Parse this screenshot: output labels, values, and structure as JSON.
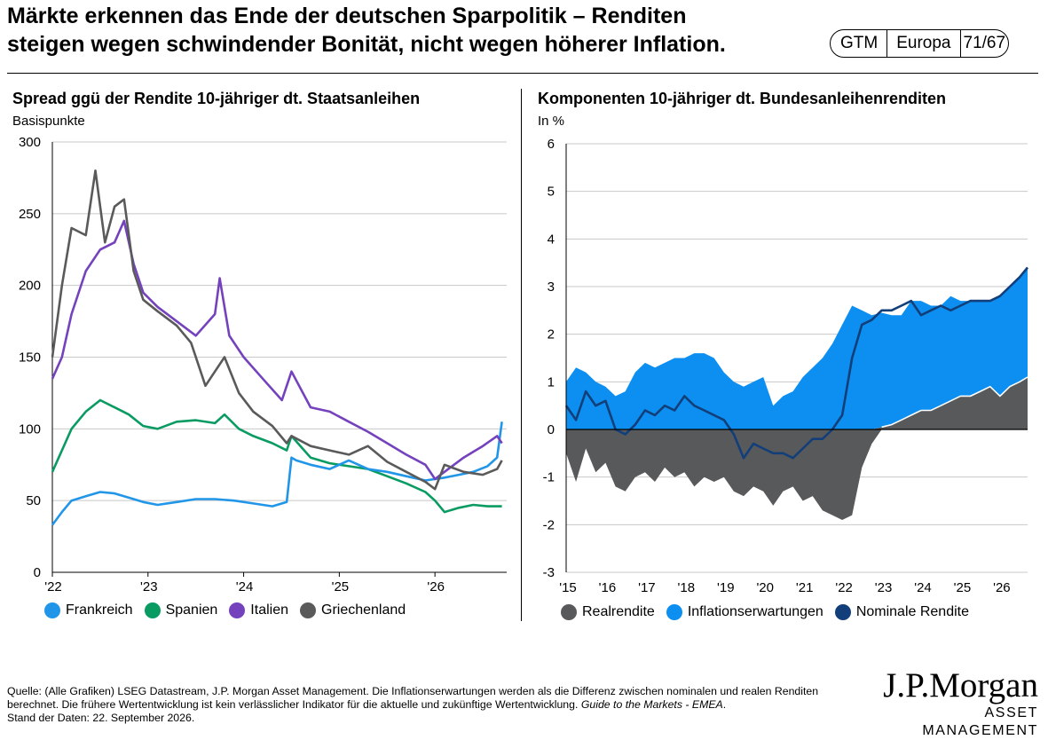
{
  "header": {
    "title_line1": "Märkte erkennen das Ende der deutschen Sparpolitik – Renditen",
    "title_line2": "steigen wegen schwindender Bonität, nicht wegen höherer Inflation.",
    "tags": [
      "GTM",
      "Europa",
      "71/67"
    ]
  },
  "colors": {
    "frankreich": "#2196e8",
    "spanien": "#0a9b63",
    "italien": "#7442bd",
    "griechenland": "#5a5a5a",
    "realrendite": "#58595b",
    "inflation": "#0c8ff0",
    "nominal": "#123f7a"
  },
  "chart_data": [
    {
      "type": "line",
      "title": "Spread ggü der Rendite 10-jähriger dt. Staatsanleihen",
      "ylabel": "Basispunkte",
      "xlim": [
        2022.0,
        2026.75
      ],
      "ylim": [
        0,
        300
      ],
      "yticks": [
        0,
        50,
        100,
        150,
        200,
        250,
        300
      ],
      "xticks": [
        "'22",
        "'23",
        "'24",
        "'25",
        "'26"
      ],
      "grid": true,
      "legend_position": "bottom",
      "series": [
        {
          "name": "Frankreich",
          "x": [
            2022.0,
            2022.1,
            2022.2,
            2022.35,
            2022.5,
            2022.65,
            2022.8,
            2022.95,
            2023.1,
            2023.3,
            2023.5,
            2023.7,
            2023.9,
            2024.1,
            2024.3,
            2024.45,
            2024.5,
            2024.55,
            2024.7,
            2024.9,
            2025.1,
            2025.3,
            2025.5,
            2025.7,
            2025.9,
            2026.1,
            2026.25,
            2026.4,
            2026.55,
            2026.65,
            2026.7
          ],
          "values": [
            33,
            42,
            50,
            53,
            56,
            55,
            52,
            49,
            47,
            49,
            51,
            51,
            50,
            48,
            46,
            49,
            80,
            78,
            75,
            72,
            78,
            72,
            70,
            67,
            64,
            66,
            68,
            70,
            74,
            80,
            105
          ]
        },
        {
          "name": "Spanien",
          "x": [
            2022.0,
            2022.1,
            2022.2,
            2022.35,
            2022.5,
            2022.65,
            2022.8,
            2022.95,
            2023.1,
            2023.3,
            2023.5,
            2023.7,
            2023.8,
            2023.95,
            2024.1,
            2024.3,
            2024.45,
            2024.5,
            2024.7,
            2024.9,
            2025.1,
            2025.3,
            2025.5,
            2025.7,
            2025.9,
            2026.0,
            2026.1,
            2026.25,
            2026.4,
            2026.55,
            2026.7
          ],
          "values": [
            70,
            85,
            100,
            112,
            120,
            115,
            110,
            102,
            100,
            105,
            106,
            104,
            110,
            100,
            95,
            90,
            85,
            95,
            80,
            76,
            74,
            72,
            67,
            62,
            56,
            50,
            42,
            45,
            47,
            46,
            46
          ]
        },
        {
          "name": "Italien",
          "x": [
            2022.0,
            2022.1,
            2022.2,
            2022.35,
            2022.5,
            2022.65,
            2022.75,
            2022.85,
            2022.95,
            2023.1,
            2023.3,
            2023.5,
            2023.7,
            2023.75,
            2023.85,
            2024.0,
            2024.2,
            2024.4,
            2024.5,
            2024.7,
            2024.9,
            2025.1,
            2025.3,
            2025.5,
            2025.7,
            2025.9,
            2026.0,
            2026.1,
            2026.3,
            2026.5,
            2026.65,
            2026.7
          ],
          "values": [
            135,
            150,
            180,
            210,
            225,
            230,
            245,
            215,
            195,
            185,
            175,
            165,
            180,
            205,
            165,
            150,
            135,
            120,
            140,
            115,
            112,
            105,
            98,
            90,
            82,
            75,
            65,
            70,
            80,
            88,
            95,
            90
          ]
        },
        {
          "name": "Griechenland",
          "x": [
            2022.0,
            2022.1,
            2022.2,
            2022.35,
            2022.45,
            2022.55,
            2022.65,
            2022.75,
            2022.85,
            2022.95,
            2023.1,
            2023.3,
            2023.45,
            2023.6,
            2023.7,
            2023.8,
            2023.95,
            2024.1,
            2024.3,
            2024.45,
            2024.5,
            2024.7,
            2024.9,
            2025.1,
            2025.3,
            2025.5,
            2025.7,
            2025.9,
            2026.0,
            2026.1,
            2026.3,
            2026.5,
            2026.65,
            2026.7
          ],
          "values": [
            150,
            200,
            240,
            235,
            280,
            230,
            255,
            260,
            210,
            190,
            182,
            172,
            160,
            130,
            140,
            150,
            125,
            112,
            102,
            90,
            95,
            88,
            85,
            82,
            88,
            77,
            70,
            63,
            58,
            75,
            70,
            68,
            72,
            78
          ]
        }
      ]
    },
    {
      "type": "area",
      "title": "Komponenten 10-jähriger dt. Bundesanleihenrenditen",
      "ylabel": "In %",
      "xlim": [
        2015.0,
        2026.7
      ],
      "ylim": [
        -3,
        6
      ],
      "yticks": [
        -3,
        -2,
        -1,
        0,
        1,
        2,
        3,
        4,
        5,
        6
      ],
      "xticks": [
        "'15",
        "'16",
        "'17",
        "'18",
        "'19",
        "'20",
        "'21",
        "'22",
        "'23",
        "'24",
        "'25",
        "'26"
      ],
      "grid": true,
      "legend_position": "bottom",
      "series": [
        {
          "name": "Realrendite",
          "x": [
            2015.0,
            2015.25,
            2015.5,
            2015.75,
            2016.0,
            2016.25,
            2016.5,
            2016.75,
            2017.0,
            2017.25,
            2017.5,
            2017.75,
            2018.0,
            2018.25,
            2018.5,
            2018.75,
            2019.0,
            2019.25,
            2019.5,
            2019.75,
            2020.0,
            2020.25,
            2020.5,
            2020.75,
            2021.0,
            2021.25,
            2021.5,
            2021.75,
            2022.0,
            2022.25,
            2022.5,
            2022.75,
            2023.0,
            2023.25,
            2023.5,
            2023.75,
            2024.0,
            2024.25,
            2024.5,
            2024.75,
            2025.0,
            2025.25,
            2025.5,
            2025.75,
            2026.0,
            2026.25,
            2026.5,
            2026.7
          ],
          "values": [
            -0.5,
            -1.1,
            -0.4,
            -0.9,
            -0.7,
            -1.2,
            -1.3,
            -1.0,
            -0.9,
            -1.1,
            -0.8,
            -1.0,
            -0.9,
            -1.2,
            -1.0,
            -1.1,
            -1.0,
            -1.3,
            -1.4,
            -1.2,
            -1.3,
            -1.6,
            -1.3,
            -1.2,
            -1.5,
            -1.4,
            -1.7,
            -1.8,
            -1.9,
            -1.8,
            -0.8,
            -0.3,
            0.05,
            0.1,
            0.2,
            0.3,
            0.4,
            0.4,
            0.5,
            0.6,
            0.7,
            0.7,
            0.8,
            0.9,
            0.7,
            0.9,
            1.0,
            1.1
          ]
        },
        {
          "name": "Inflationserwartungen",
          "x": [
            2015.0,
            2015.25,
            2015.5,
            2015.75,
            2016.0,
            2016.25,
            2016.5,
            2016.75,
            2017.0,
            2017.25,
            2017.5,
            2017.75,
            2018.0,
            2018.25,
            2018.5,
            2018.75,
            2019.0,
            2019.25,
            2019.5,
            2019.75,
            2020.0,
            2020.25,
            2020.5,
            2020.75,
            2021.0,
            2021.25,
            2021.5,
            2021.75,
            2022.0,
            2022.25,
            2022.5,
            2022.75,
            2023.0,
            2023.25,
            2023.5,
            2023.75,
            2024.0,
            2024.25,
            2024.5,
            2024.75,
            2025.0,
            2025.25,
            2025.5,
            2025.75,
            2026.0,
            2026.25,
            2026.5,
            2026.7
          ],
          "values": [
            1.0,
            1.3,
            1.2,
            1.0,
            0.9,
            0.7,
            0.8,
            1.2,
            1.4,
            1.3,
            1.4,
            1.5,
            1.5,
            1.6,
            1.6,
            1.5,
            1.2,
            1.0,
            0.9,
            1.0,
            1.1,
            0.5,
            0.7,
            0.8,
            1.1,
            1.3,
            1.5,
            1.8,
            2.2,
            2.6,
            2.5,
            2.4,
            2.4,
            2.3,
            2.2,
            2.4,
            2.3,
            2.2,
            2.1,
            2.2,
            2.0,
            2.0,
            1.9,
            1.8,
            2.1,
            2.1,
            2.2,
            2.3
          ]
        },
        {
          "name": "Nominale Rendite",
          "x": [
            2015.0,
            2015.25,
            2015.5,
            2015.75,
            2016.0,
            2016.25,
            2016.5,
            2016.75,
            2017.0,
            2017.25,
            2017.5,
            2017.75,
            2018.0,
            2018.25,
            2018.5,
            2018.75,
            2019.0,
            2019.25,
            2019.5,
            2019.75,
            2020.0,
            2020.25,
            2020.5,
            2020.75,
            2021.0,
            2021.25,
            2021.5,
            2021.75,
            2022.0,
            2022.25,
            2022.5,
            2022.75,
            2023.0,
            2023.25,
            2023.5,
            2023.75,
            2024.0,
            2024.25,
            2024.5,
            2024.75,
            2025.0,
            2025.25,
            2025.5,
            2025.75,
            2026.0,
            2026.25,
            2026.5,
            2026.7
          ],
          "values": [
            0.5,
            0.2,
            0.8,
            0.5,
            0.6,
            0.0,
            -0.1,
            0.1,
            0.4,
            0.3,
            0.5,
            0.4,
            0.7,
            0.5,
            0.4,
            0.3,
            0.2,
            -0.1,
            -0.6,
            -0.3,
            -0.4,
            -0.5,
            -0.5,
            -0.6,
            -0.4,
            -0.2,
            -0.2,
            0.0,
            0.3,
            1.5,
            2.2,
            2.3,
            2.5,
            2.5,
            2.6,
            2.7,
            2.4,
            2.5,
            2.6,
            2.5,
            2.6,
            2.7,
            2.7,
            2.7,
            2.8,
            3.0,
            3.2,
            3.4
          ]
        }
      ]
    }
  ],
  "left_panel": {
    "title": "Spread ggü der Rendite 10-jähriger dt. Staatsanleihen",
    "unit": "Basispunkte",
    "legend": [
      "Frankreich",
      "Spanien",
      "Italien",
      "Griechenland"
    ]
  },
  "right_panel": {
    "title": "Komponenten 10-jähriger dt. Bundesanleihenrenditen",
    "unit": "In %",
    "legend": [
      "Realrendite",
      "Inflationserwartungen",
      "Nominale Rendite"
    ]
  },
  "footer": {
    "source_text": "Quelle: (Alle Grafiken) LSEG Datastream, J.P. Morgan Asset Management. Die Inflationserwartungen werden als die Differenz zwischen nominalen und realen Renditen berechnet. Die frühere Wertentwicklung ist kein verlässlicher Indikator für die aktuelle und zukünftige Wertentwicklung. ",
    "source_italic": "Guide to the Markets - EMEA",
    "source_end": ".",
    "date_line": "Stand der Daten: 22. September 2026."
  },
  "logo": {
    "line1": "J.P.Morgan",
    "line2": "ASSET MANAGEMENT"
  }
}
